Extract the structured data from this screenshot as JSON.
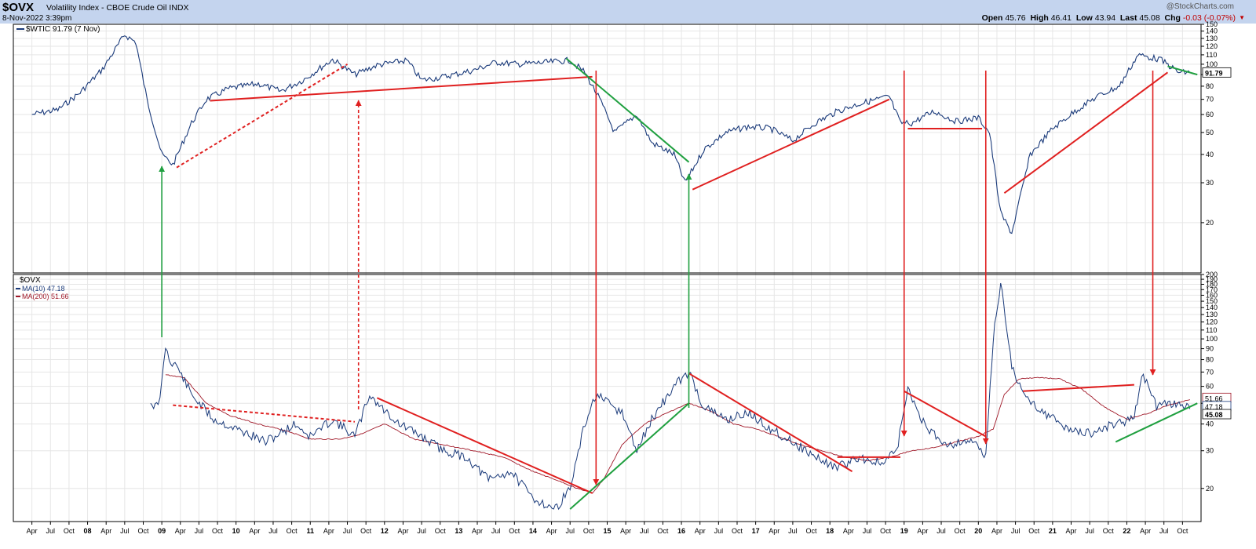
{
  "header": {
    "symbol": "$OVX",
    "name": "Volatility Index - CBOE Crude Oil",
    "exchange": "INDX",
    "date": "8-Nov-2022 3:39pm",
    "watermark": "@StockCharts.com",
    "quote": {
      "open_label": "Open",
      "open": "45.76",
      "high_label": "High",
      "high": "46.41",
      "low_label": "Low",
      "low": "43.94",
      "last_label": "Last",
      "last": "45.08",
      "chg_label": "Chg",
      "chg": "-0.03 (-0.07%)"
    }
  },
  "colors": {
    "price": "#1a3a7a",
    "ma200": "#a01828",
    "trend_red": "#e02020",
    "trend_green": "#20a040",
    "header_bg": "#c4d4ee",
    "grid": "#e6e6e6"
  },
  "chart_data": [
    {
      "type": "line",
      "legend": "$WTIC 91.79 (7 Nov)",
      "scale": "log",
      "ylim": [
        12,
        150
      ],
      "yticks": [
        20,
        30,
        40,
        50,
        60,
        70,
        80,
        90,
        100,
        110,
        120,
        130,
        140,
        150
      ],
      "last_label": "91.79",
      "series": [
        {
          "name": "$WTIC",
          "x": [
            2007.25,
            2007.6,
            2007.9,
            2008.2,
            2008.5,
            2008.65,
            2008.8,
            2009.0,
            2009.15,
            2009.4,
            2009.6,
            2009.9,
            2010.3,
            2010.6,
            2010.9,
            2011.3,
            2011.6,
            2011.9,
            2012.3,
            2012.5,
            2012.8,
            2013.2,
            2013.5,
            2013.8,
            2014.2,
            2014.5,
            2014.7,
            2014.9,
            2015.1,
            2015.4,
            2015.6,
            2015.9,
            2016.05,
            2016.3,
            2016.6,
            2016.9,
            2017.2,
            2017.5,
            2017.8,
            2018.1,
            2018.4,
            2018.8,
            2018.95,
            2019.1,
            2019.4,
            2019.7,
            2020.0,
            2020.15,
            2020.3,
            2020.45,
            2020.7,
            2021.0,
            2021.3,
            2021.6,
            2021.9,
            2022.15,
            2022.45,
            2022.7,
            2022.85
          ],
          "values": [
            60,
            63,
            75,
            95,
            135,
            125,
            70,
            40,
            36,
            55,
            70,
            78,
            82,
            76,
            85,
            105,
            90,
            99,
            104,
            85,
            88,
            94,
            102,
            100,
            102,
            104,
            92,
            70,
            50,
            60,
            45,
            40,
            30,
            42,
            50,
            53,
            52,
            46,
            55,
            62,
            67,
            72,
            55,
            55,
            62,
            56,
            58,
            50,
            22,
            18,
            40,
            52,
            62,
            72,
            80,
            110,
            105,
            92,
            92
          ]
        }
      ],
      "trendlines": [
        {
          "color": "red",
          "style": "solid",
          "from": [
            2009.65,
            69
          ],
          "to": [
            2014.8,
            88
          ]
        },
        {
          "color": "red",
          "style": "dashed",
          "from": [
            2009.2,
            35
          ],
          "to": [
            2011.5,
            100
          ]
        },
        {
          "color": "green",
          "style": "solid",
          "from": [
            2014.45,
            106
          ],
          "to": [
            2016.1,
            37
          ]
        },
        {
          "color": "red",
          "style": "solid",
          "from": [
            2016.15,
            28
          ],
          "to": [
            2018.8,
            70
          ]
        },
        {
          "color": "red",
          "style": "solid",
          "from": [
            2019.05,
            52
          ],
          "to": [
            2020.05,
            52
          ]
        },
        {
          "color": "red",
          "style": "solid",
          "from": [
            2020.35,
            27
          ],
          "to": [
            2022.55,
            92
          ]
        },
        {
          "color": "green",
          "style": "solid",
          "from": [
            2022.55,
            98
          ],
          "to": [
            2022.95,
            90
          ]
        }
      ]
    },
    {
      "type": "line",
      "legend": [
        "$OVX",
        "MA(10) 47.18",
        "MA(200) 51.66"
      ],
      "scale": "log",
      "ylim": [
        14,
        200
      ],
      "yticks": [
        20,
        30,
        40,
        50,
        60,
        70,
        80,
        90,
        100,
        110,
        120,
        130,
        140,
        150,
        160,
        170,
        180,
        190,
        200
      ],
      "last_labels": [
        "51.66",
        "47.18",
        "45.08"
      ],
      "series": [
        {
          "name": "MA(10)",
          "x": [
            2008.85,
            2008.95,
            2009.0,
            2009.05,
            2009.1,
            2009.2,
            2009.4,
            2009.7,
            2010.0,
            2010.4,
            2010.8,
            2011.0,
            2011.3,
            2011.6,
            2011.8,
            2011.95,
            2012.2,
            2012.5,
            2012.8,
            2013.1,
            2013.4,
            2013.7,
            2014.0,
            2014.3,
            2014.5,
            2014.7,
            2014.85,
            2015.0,
            2015.2,
            2015.4,
            2015.6,
            2015.9,
            2016.1,
            2016.3,
            2016.6,
            2016.9,
            2017.2,
            2017.5,
            2017.8,
            2018.1,
            2018.4,
            2018.7,
            2018.9,
            2019.05,
            2019.3,
            2019.6,
            2019.9,
            2020.1,
            2020.2,
            2020.3,
            2020.45,
            2020.6,
            2020.9,
            2021.2,
            2021.5,
            2021.8,
            2022.1,
            2022.2,
            2022.4,
            2022.6,
            2022.85
          ],
          "values": [
            50,
            48,
            62,
            93,
            80,
            75,
            55,
            42,
            38,
            33,
            40,
            35,
            42,
            35,
            55,
            48,
            40,
            35,
            30,
            28,
            22,
            24,
            18,
            16,
            20,
            40,
            55,
            50,
            45,
            30,
            42,
            60,
            70,
            48,
            42,
            45,
            38,
            33,
            28,
            25,
            28,
            26,
            30,
            58,
            38,
            32,
            34,
            28,
            100,
            185,
            75,
            55,
            45,
            38,
            36,
            40,
            42,
            70,
            48,
            50,
            47
          ]
        },
        {
          "name": "MA(200)",
          "x": [
            2009.05,
            2009.3,
            2009.6,
            2009.9,
            2010.3,
            2010.7,
            2011.0,
            2011.4,
            2011.7,
            2012.0,
            2012.4,
            2012.8,
            2013.2,
            2013.6,
            2014.0,
            2014.3,
            2014.6,
            2014.8,
            2014.95,
            2015.2,
            2015.5,
            2015.8,
            2016.1,
            2016.4,
            2016.7,
            2017.0,
            2017.3,
            2017.6,
            2017.9,
            2018.2,
            2018.5,
            2018.8,
            2019.1,
            2019.4,
            2019.7,
            2020.0,
            2020.2,
            2020.35,
            2020.55,
            2020.8,
            2021.1,
            2021.4,
            2021.7,
            2022.0,
            2022.3,
            2022.55,
            2022.85
          ],
          "values": [
            68,
            66,
            50,
            44,
            40,
            37,
            34,
            34,
            36,
            40,
            34,
            32,
            30,
            28,
            24,
            22,
            20,
            19,
            22,
            32,
            40,
            45,
            50,
            46,
            40,
            38,
            35,
            32,
            30,
            28,
            27,
            28,
            30,
            31,
            33,
            35,
            38,
            55,
            65,
            66,
            65,
            58,
            48,
            42,
            45,
            49,
            52
          ]
        }
      ],
      "trendlines": [
        {
          "color": "red",
          "style": "dashed",
          "from": [
            2009.15,
            49
          ],
          "to": [
            2011.6,
            41
          ]
        },
        {
          "color": "red",
          "style": "solid",
          "from": [
            2011.9,
            53
          ],
          "to": [
            2014.8,
            19
          ]
        },
        {
          "color": "green",
          "style": "solid",
          "from": [
            2014.5,
            16
          ],
          "to": [
            2016.1,
            50
          ]
        },
        {
          "color": "red",
          "style": "solid",
          "from": [
            2016.1,
            69
          ],
          "to": [
            2018.3,
            24
          ]
        },
        {
          "color": "red",
          "style": "solid",
          "from": [
            2018.1,
            28
          ],
          "to": [
            2018.95,
            28
          ]
        },
        {
          "color": "red",
          "style": "solid",
          "from": [
            2019.0,
            57
          ],
          "to": [
            2020.1,
            35
          ]
        },
        {
          "color": "red",
          "style": "solid",
          "from": [
            2020.6,
            57
          ],
          "to": [
            2022.1,
            61
          ]
        },
        {
          "color": "green",
          "style": "solid",
          "from": [
            2021.85,
            33
          ],
          "to": [
            2022.95,
            50
          ]
        }
      ]
    }
  ],
  "arrows": [
    {
      "color": "green",
      "style": "solid",
      "x": 2009.0,
      "from": "lower",
      "to": "upper"
    },
    {
      "color": "red",
      "style": "dashed",
      "x": 2011.65,
      "from": "lower",
      "to": "upper"
    },
    {
      "color": "red",
      "style": "solid",
      "x": 2014.85,
      "from": "upper",
      "to": "lower"
    },
    {
      "color": "green",
      "style": "solid",
      "x": 2016.1,
      "from": "lower",
      "to": "upper"
    },
    {
      "color": "red",
      "style": "solid",
      "x": 2019.0,
      "from": "upper",
      "to": "lower"
    },
    {
      "color": "red",
      "style": "solid",
      "x": 2020.1,
      "from": "upper",
      "to": "lower"
    },
    {
      "color": "red",
      "style": "solid",
      "x": 2022.35,
      "from": "upper",
      "to": "lower"
    }
  ],
  "x_axis": {
    "xlim": [
      2007.0,
      2023.0
    ],
    "ticks": [
      {
        "x": 2007.25,
        "label": "Apr"
      },
      {
        "x": 2007.5,
        "label": "Jul"
      },
      {
        "x": 2007.75,
        "label": "Oct"
      },
      {
        "x": 2008.0,
        "label": "08"
      },
      {
        "x": 2008.25,
        "label": "Apr"
      },
      {
        "x": 2008.5,
        "label": "Jul"
      },
      {
        "x": 2008.75,
        "label": "Oct"
      },
      {
        "x": 2009.0,
        "label": "09"
      },
      {
        "x": 2009.25,
        "label": "Apr"
      },
      {
        "x": 2009.5,
        "label": "Jul"
      },
      {
        "x": 2009.75,
        "label": "Oct"
      },
      {
        "x": 2010.0,
        "label": "10"
      },
      {
        "x": 2010.25,
        "label": "Apr"
      },
      {
        "x": 2010.5,
        "label": "Jul"
      },
      {
        "x": 2010.75,
        "label": "Oct"
      },
      {
        "x": 2011.0,
        "label": "11"
      },
      {
        "x": 2011.25,
        "label": "Apr"
      },
      {
        "x": 2011.5,
        "label": "Jul"
      },
      {
        "x": 2011.75,
        "label": "Oct"
      },
      {
        "x": 2012.0,
        "label": "12"
      },
      {
        "x": 2012.25,
        "label": "Apr"
      },
      {
        "x": 2012.5,
        "label": "Jul"
      },
      {
        "x": 2012.75,
        "label": "Oct"
      },
      {
        "x": 2013.0,
        "label": "13"
      },
      {
        "x": 2013.25,
        "label": "Apr"
      },
      {
        "x": 2013.5,
        "label": "Jul"
      },
      {
        "x": 2013.75,
        "label": "Oct"
      },
      {
        "x": 2014.0,
        "label": "14"
      },
      {
        "x": 2014.25,
        "label": "Apr"
      },
      {
        "x": 2014.5,
        "label": "Jul"
      },
      {
        "x": 2014.75,
        "label": "Oct"
      },
      {
        "x": 2015.0,
        "label": "15"
      },
      {
        "x": 2015.25,
        "label": "Apr"
      },
      {
        "x": 2015.5,
        "label": "Jul"
      },
      {
        "x": 2015.75,
        "label": "Oct"
      },
      {
        "x": 2016.0,
        "label": "16"
      },
      {
        "x": 2016.25,
        "label": "Apr"
      },
      {
        "x": 2016.5,
        "label": "Jul"
      },
      {
        "x": 2016.75,
        "label": "Oct"
      },
      {
        "x": 2017.0,
        "label": "17"
      },
      {
        "x": 2017.25,
        "label": "Apr"
      },
      {
        "x": 2017.5,
        "label": "Jul"
      },
      {
        "x": 2017.75,
        "label": "Oct"
      },
      {
        "x": 2018.0,
        "label": "18"
      },
      {
        "x": 2018.25,
        "label": "Apr"
      },
      {
        "x": 2018.5,
        "label": "Jul"
      },
      {
        "x": 2018.75,
        "label": "Oct"
      },
      {
        "x": 2019.0,
        "label": "19"
      },
      {
        "x": 2019.25,
        "label": "Apr"
      },
      {
        "x": 2019.5,
        "label": "Jul"
      },
      {
        "x": 2019.75,
        "label": "Oct"
      },
      {
        "x": 2020.0,
        "label": "20"
      },
      {
        "x": 2020.25,
        "label": "Apr"
      },
      {
        "x": 2020.5,
        "label": "Jul"
      },
      {
        "x": 2020.75,
        "label": "Oct"
      },
      {
        "x": 2021.0,
        "label": "21"
      },
      {
        "x": 2021.25,
        "label": "Apr"
      },
      {
        "x": 2021.5,
        "label": "Jul"
      },
      {
        "x": 2021.75,
        "label": "Oct"
      },
      {
        "x": 2022.0,
        "label": "22"
      },
      {
        "x": 2022.25,
        "label": "Apr"
      },
      {
        "x": 2022.5,
        "label": "Jul"
      },
      {
        "x": 2022.75,
        "label": "Oct"
      }
    ]
  }
}
